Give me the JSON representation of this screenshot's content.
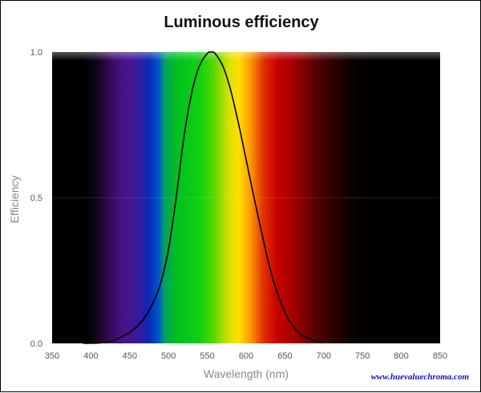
{
  "chart_data": {
    "type": "line",
    "title": "Luminous efficiency",
    "xlabel": "Wavelength (nm)",
    "ylabel": "Efficiency",
    "xlim": [
      350,
      850
    ],
    "ylim": [
      0,
      1
    ],
    "x_ticks": [
      "350",
      "400",
      "450",
      "500",
      "550",
      "600",
      "650",
      "700",
      "750",
      "800",
      "850"
    ],
    "y_ticks": [
      "0.0",
      "0.5",
      "1.0"
    ],
    "grid": false,
    "background": "visible spectrum gradient",
    "series": [
      {
        "x": [
          390,
          400,
          410,
          420,
          430,
          440,
          450,
          460,
          470,
          480,
          490,
          500,
          510,
          520,
          530,
          540,
          550,
          555,
          560,
          570,
          580,
          590,
          600,
          610,
          620,
          630,
          640,
          650,
          660,
          670,
          680,
          690,
          700
        ],
        "values": [
          0.0001,
          0.0004,
          0.0012,
          0.004,
          0.0116,
          0.023,
          0.038,
          0.06,
          0.091,
          0.139,
          0.208,
          0.323,
          0.503,
          0.71,
          0.862,
          0.954,
          0.995,
          1.0,
          0.995,
          0.952,
          0.87,
          0.757,
          0.631,
          0.503,
          0.381,
          0.265,
          0.175,
          0.107,
          0.061,
          0.032,
          0.017,
          0.0082,
          0.0041
        ],
        "color": "#000000"
      }
    ]
  },
  "watermark": "www.huevaluechroma.com"
}
